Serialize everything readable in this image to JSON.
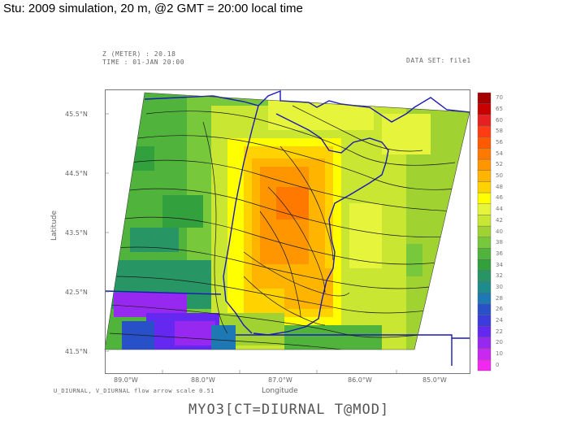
{
  "slide_title": "Stu: 2009 simulation, 20 m, @2 GMT = 20:00 local time",
  "plot": {
    "header_line1": "Z (METER) : 20.18",
    "header_line2": "TIME  : 01-JAN 20:00",
    "dataset": "DATA SET: file1",
    "ylabel": "Latitude",
    "xlabel": "Longitude",
    "lat_ticks": [
      "45.5°N",
      "44.5°N",
      "43.5°N",
      "42.5°N",
      "41.5°N"
    ],
    "lon_ticks": [
      "89.0°W",
      "88.0°W",
      "87.0°W",
      "86.0°W",
      "85.0°W"
    ],
    "footnote": "U_DIURNAL, V_DIURNAL    flow arrow scale 0.51",
    "footer_title": "MYO3[CT=DIURNAL T@MOD]"
  },
  "colorbar": {
    "labels": [
      "70",
      "65",
      "60",
      "58",
      "56",
      "54",
      "52",
      "50",
      "48",
      "46",
      "44",
      "42",
      "40",
      "38",
      "36",
      "34",
      "32",
      "30",
      "28",
      "26",
      "24",
      "22",
      "20",
      "10",
      "0"
    ],
    "colors": [
      "#a50000",
      "#c80000",
      "#e62020",
      "#ff3c14",
      "#ff5a00",
      "#ff7800",
      "#ff9600",
      "#ffb400",
      "#ffd200",
      "#ffff00",
      "#e6f53c",
      "#c8e632",
      "#a0d232",
      "#78c83c",
      "#50b43c",
      "#32a03c",
      "#289664",
      "#1e8c8c",
      "#1e78b4",
      "#2850c8",
      "#3c3cdc",
      "#6428f0",
      "#9628f0",
      "#c828f0",
      "#f028f0"
    ]
  },
  "map_colors": {
    "coast": "#1a1ab4",
    "streamline": "#1a1a1a"
  }
}
